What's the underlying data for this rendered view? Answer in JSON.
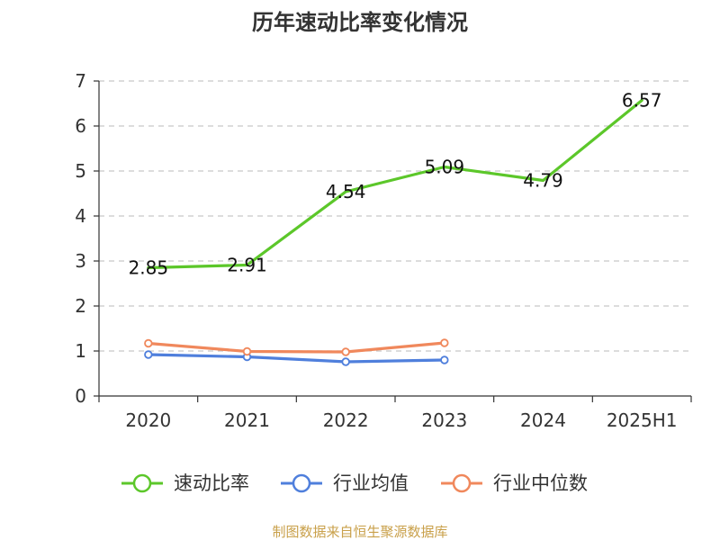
{
  "chart_data": {
    "type": "line",
    "title": "历年速动比率变化情况",
    "categories": [
      "2020",
      "2021",
      "2022",
      "2023",
      "2024",
      "2025H1"
    ],
    "ylim": [
      0,
      7
    ],
    "yticks": [
      "0",
      "1",
      "2",
      "3",
      "4",
      "5",
      "6",
      "7"
    ],
    "grid": true,
    "legend_position": "bottom",
    "series": [
      {
        "name": "速动比率",
        "color": "#5cc72a",
        "values": [
          2.85,
          2.91,
          4.54,
          5.09,
          4.79,
          6.57
        ],
        "labels": [
          "2.85",
          "2.91",
          "4.54",
          "5.09",
          "4.79",
          "6.57"
        ],
        "show_markers": false
      },
      {
        "name": "行业均值",
        "color": "#4f7fdc",
        "values": [
          0.92,
          0.87,
          0.76,
          0.8,
          null,
          null
        ],
        "show_markers": true
      },
      {
        "name": "行业中位数",
        "color": "#f0885c",
        "values": [
          1.17,
          0.99,
          0.98,
          1.18,
          null,
          null
        ],
        "show_markers": true
      }
    ]
  },
  "footer": {
    "source": "制图数据来自恒生聚源数据库"
  }
}
